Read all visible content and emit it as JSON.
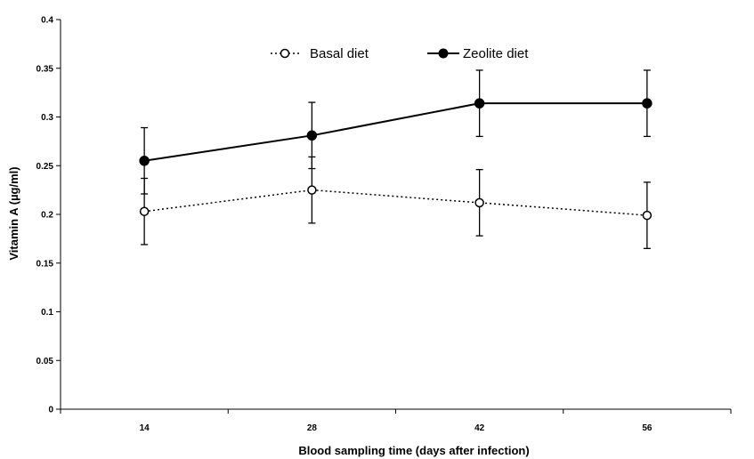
{
  "chart_data": {
    "type": "line",
    "title": "",
    "xlabel": "Blood sampling time (days after infection)",
    "ylabel": "Vitamin A (µg/ml)",
    "categories": [
      "14",
      "28",
      "42",
      "56"
    ],
    "ylim": [
      0,
      0.4
    ],
    "yticks": [
      "0",
      "0.05",
      "0.1",
      "0.15",
      "0.2",
      "0.25",
      "0.3",
      "0.35",
      "0.4"
    ],
    "grid": false,
    "legend_position": "top-center",
    "series": [
      {
        "name": "Basal diet",
        "line_style": "dotted",
        "marker": "open-circle",
        "values": [
          0.203,
          0.225,
          0.212,
          0.199
        ],
        "error": [
          0.034,
          0.034,
          0.034,
          0.034
        ]
      },
      {
        "name": "Zeolite diet",
        "line_style": "solid",
        "marker": "filled-circle",
        "values": [
          0.255,
          0.281,
          0.314,
          0.314
        ],
        "error": [
          0.034,
          0.034,
          0.034,
          0.034
        ]
      }
    ]
  }
}
